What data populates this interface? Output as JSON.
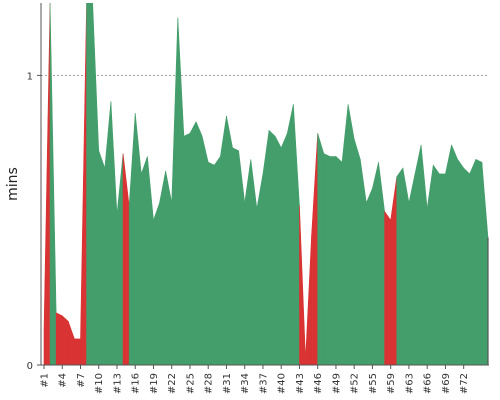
{
  "chart_data": {
    "type": "area",
    "title": "",
    "xlabel": "",
    "ylabel": "mins",
    "ylim": [
      0,
      1.25
    ],
    "y_ticks": [
      {
        "value": 0,
        "label": "0"
      },
      {
        "value": 1,
        "label": "1"
      }
    ],
    "grid": "dashed gridline at y = 1",
    "x_tick_labels": [
      "#1",
      "#4",
      "#7",
      "#10",
      "#13",
      "#16",
      "#19",
      "#22",
      "#25",
      "#28",
      "#31",
      "#34",
      "#37",
      "#40",
      "#43",
      "#46",
      "#49",
      "#52",
      "#55",
      "#59",
      "#63",
      "#66",
      "#69",
      "#72"
    ],
    "x_tick_indices": [
      0,
      3,
      6,
      9,
      12,
      15,
      18,
      21,
      24,
      27,
      30,
      33,
      36,
      39,
      42,
      45,
      48,
      51,
      54,
      57,
      60,
      63,
      66,
      69
    ],
    "series_colors": {
      "pass": "#449e6c",
      "fail": "#d93333",
      "axis": "#555555",
      "grid": "#888888"
    },
    "values": [
      0.12,
      1.3,
      0.18,
      0.17,
      0.15,
      0.09,
      0.09,
      1.3,
      1.3,
      0.74,
      0.68,
      0.91,
      0.52,
      0.73,
      0.55,
      0.87,
      0.66,
      0.72,
      0.5,
      0.56,
      0.67,
      0.56,
      1.2,
      0.79,
      0.8,
      0.84,
      0.79,
      0.7,
      0.69,
      0.72,
      0.86,
      0.75,
      0.74,
      0.56,
      0.71,
      0.54,
      0.66,
      0.81,
      0.79,
      0.75,
      0.8,
      0.9,
      0.55,
      0.02,
      0.45,
      0.8,
      0.73,
      0.72,
      0.72,
      0.7,
      0.9,
      0.78,
      0.71,
      0.56,
      0.61,
      0.7,
      0.53,
      0.5,
      0.65,
      0.68,
      0.56,
      0.66,
      0.76,
      0.54,
      0.69,
      0.66,
      0.66,
      0.76,
      0.71,
      0.68,
      0.66,
      0.71,
      0.7,
      0.44
    ],
    "status": [
      "fail",
      "pass",
      "fail",
      "fail",
      "fail",
      "fail",
      "fail",
      "pass",
      "pass",
      "pass",
      "pass",
      "pass",
      "pass",
      "fail",
      "pass",
      "pass",
      "pass",
      "pass",
      "pass",
      "pass",
      "pass",
      "pass",
      "pass",
      "pass",
      "pass",
      "pass",
      "pass",
      "pass",
      "pass",
      "pass",
      "pass",
      "pass",
      "pass",
      "pass",
      "pass",
      "pass",
      "pass",
      "pass",
      "pass",
      "pass",
      "pass",
      "pass",
      "fail",
      "fail",
      "fail",
      "pass",
      "pass",
      "pass",
      "pass",
      "pass",
      "pass",
      "pass",
      "pass",
      "pass",
      "pass",
      "pass",
      "fail",
      "fail",
      "pass",
      "pass",
      "pass",
      "pass",
      "pass",
      "pass",
      "pass",
      "pass",
      "pass",
      "pass",
      "pass",
      "pass",
      "pass",
      "pass",
      "pass",
      "pass"
    ]
  }
}
